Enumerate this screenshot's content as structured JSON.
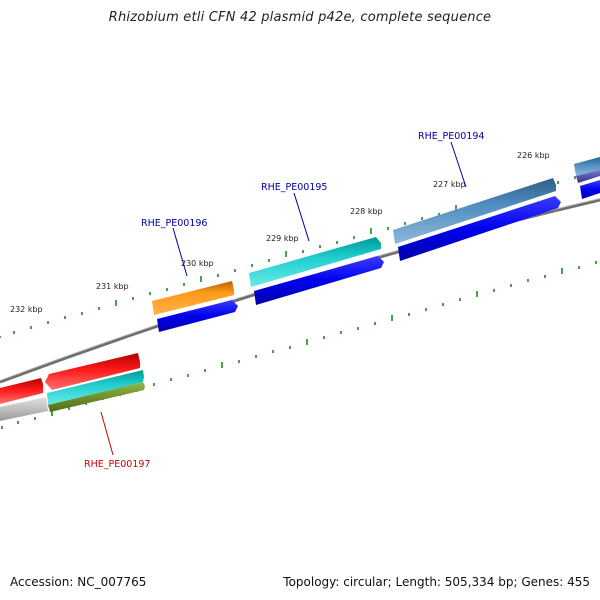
{
  "title": "Rhizobium etli CFN 42 plasmid p42e, complete sequence",
  "footer": {
    "accession": "Accession: NC_007765",
    "summary": "Topology: circular; Length: 505,334 bp; Genes: 455"
  },
  "ticks": [
    "226 kbp",
    "227 kbp",
    "228 kbp",
    "229 kbp",
    "230 kbp",
    "231 kbp",
    "232 kbp"
  ],
  "gene_labels": [
    {
      "name": "RHE_PE00194",
      "color": "#0000aa"
    },
    {
      "name": "RHE_PE00195",
      "color": "#0000aa"
    },
    {
      "name": "RHE_PE00196",
      "color": "#0000aa"
    },
    {
      "name": "RHE_PE00197",
      "color": "#cc0000"
    }
  ],
  "colors": {
    "backbone": "#888888",
    "tick": "#007700",
    "cds_blue": "#0000ee",
    "orange": "#ff8800",
    "cyan": "#00cccc",
    "steelblue": "#4682b4",
    "red": "#ee0000",
    "olive": "#6b8e23",
    "gray": "#bbbbbb",
    "purple": "#5555aa"
  }
}
